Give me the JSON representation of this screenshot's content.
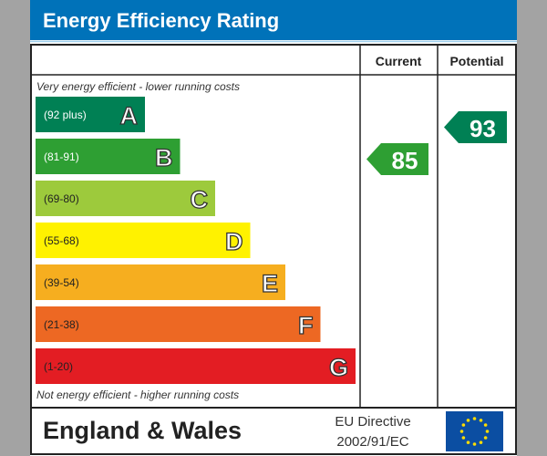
{
  "header": {
    "title": "Energy Efficiency Rating",
    "color": "#0072b9"
  },
  "columns": {
    "current": "Current",
    "potential": "Potential"
  },
  "top_note": "Very energy efficient - lower running costs",
  "bottom_note": "Not energy efficient - higher running costs",
  "footer": {
    "region": "England & Wales",
    "directive_line1": "EU Directive",
    "directive_line2": "2002/91/EC",
    "flag_icon": "eu-flag-icon"
  },
  "chart_data": {
    "type": "bar",
    "bands": [
      {
        "letter": "A",
        "range": "(92 plus)",
        "color": "#008054"
      },
      {
        "letter": "B",
        "range": "(81-91)",
        "color": "#2e9f33"
      },
      {
        "letter": "C",
        "range": "(69-80)",
        "color": "#9dca3c"
      },
      {
        "letter": "D",
        "range": "(55-68)",
        "color": "#fff200"
      },
      {
        "letter": "E",
        "range": "(39-54)",
        "color": "#f6ae1f"
      },
      {
        "letter": "F",
        "range": "(21-38)",
        "color": "#ed6823"
      },
      {
        "letter": "G",
        "range": "(1-20)",
        "color": "#e31d23"
      }
    ],
    "current": {
      "value": 85,
      "band": "B",
      "color": "#2e9f33"
    },
    "potential": {
      "value": 93,
      "band": "A",
      "color": "#008054"
    }
  }
}
